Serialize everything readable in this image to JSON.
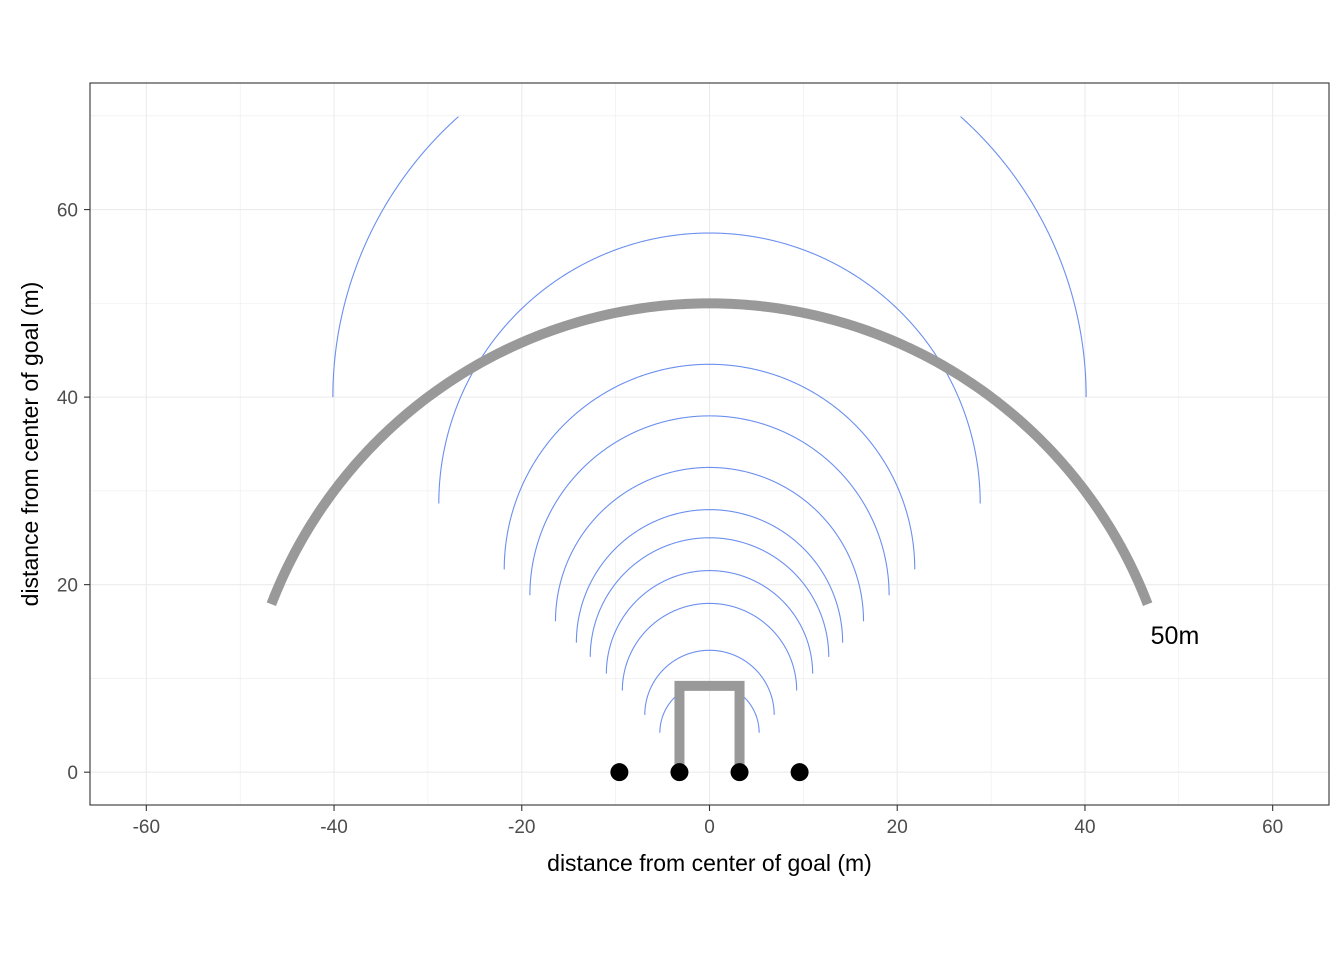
{
  "chart_data": {
    "type": "line",
    "title": "",
    "xlabel": "distance from center of goal (m)",
    "ylabel": "distance from center of goal (m)",
    "xlim": [
      -66,
      66
    ],
    "ylim": [
      -3.5,
      73.5
    ],
    "x_ticks": [
      -60,
      -40,
      -20,
      0,
      20,
      40,
      60
    ],
    "y_ticks": [
      0,
      20,
      40,
      60
    ],
    "grid": true,
    "legend": "none",
    "colors": {
      "contour": "#6b8fef",
      "highlight": "#999999",
      "points": "#000000",
      "grid": "#ebebeb",
      "border": "#333333"
    },
    "posts": [
      {
        "x": -9.6,
        "y": 0
      },
      {
        "x": -3.2,
        "y": 0
      },
      {
        "x": 3.2,
        "y": 0
      },
      {
        "x": 9.6,
        "y": 0
      }
    ],
    "goal_frame": {
      "x_left": -3.2,
      "x_right": 3.2,
      "height": 9.2
    },
    "highlight_arc": {
      "label": "50m",
      "radius": 50,
      "from_deg": 21,
      "to_deg": 159,
      "label_x": 47,
      "label_y": 14.5
    },
    "contours": {
      "focus_half_width": 3.2,
      "circle_tops": [
        9.5,
        13,
        18,
        21.5,
        25,
        28,
        32.5,
        38,
        43.5,
        57.5
      ],
      "large_circle_offsets": [
        40,
        80,
        120
      ],
      "clip_x": [
        -60,
        60
      ],
      "clip_y": [
        1,
        70
      ]
    }
  }
}
